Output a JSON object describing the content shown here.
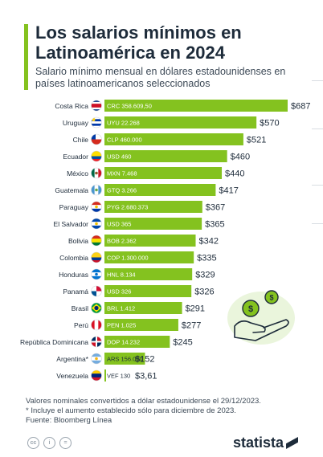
{
  "header": {
    "title": "Los salarios mínimos en Latinoamérica en 2024",
    "subtitle": "Salario mínimo mensual en dólares estadounidenses en países latinoamericanos seleccionados"
  },
  "colors": {
    "accent": "#84c21f",
    "bar": "#84c21f",
    "text": "#1d2b3a"
  },
  "chart_data": {
    "type": "bar",
    "orientation": "horizontal",
    "value_prefix": "$",
    "categories": [
      "Costa Rica",
      "Uruguay",
      "Chile",
      "Ecuador",
      "México",
      "Guatemala",
      "Paraguay",
      "El Salvador",
      "Bolivia",
      "Colombia",
      "Honduras",
      "Panamá",
      "Brasil",
      "Perú",
      "República Dominicana",
      "Argentina*",
      "Venezuela"
    ],
    "values": [
      687,
      570,
      521,
      460,
      440,
      417,
      367,
      365,
      342,
      335,
      329,
      326,
      291,
      277,
      245,
      152,
      3.61
    ],
    "value_labels": [
      "$687",
      "$570",
      "$521",
      "$460",
      "$440",
      "$417",
      "$367",
      "$365",
      "$342",
      "$335",
      "$329",
      "$326",
      "$291",
      "$277",
      "$245",
      "$152",
      "$3,61"
    ],
    "local_labels": [
      "CRC 358.609,50",
      "UYU 22.268",
      "CLP 460.000",
      "USD 460",
      "MXN 7.468",
      "GTQ 3.266",
      "PYG 2.680.373",
      "USD 365",
      "BOB 2.362",
      "COP 1.300.000",
      "HNL 8.134",
      "USD 326",
      "BRL 1.412",
      "PEN 1.025",
      "DOP 14.232",
      "ARS 156.000",
      "VEF 130"
    ],
    "flags": [
      "costa-rica",
      "uruguay",
      "chile",
      "ecuador",
      "mexico",
      "guatemala",
      "paraguay",
      "el-salvador",
      "bolivia",
      "colombia",
      "honduras",
      "panama",
      "brasil",
      "peru",
      "republica-dominicana",
      "argentina",
      "venezuela"
    ],
    "xlim": [
      0,
      687
    ],
    "grid": false,
    "legend": "none"
  },
  "footer": {
    "note1": "Valores nominales convertidos a dólar estadounidense el 29/12/2023.",
    "note2": "* Incluye el aumento establecido sólo para diciembre de 2023.",
    "source": "Fuente: Bloomberg Línea"
  },
  "icons": {
    "illustration": "hand-holding-coins-icon",
    "license": [
      "cc-icon",
      "person-icon",
      "equal-icon"
    ]
  },
  "brand": {
    "logo": "statista"
  }
}
